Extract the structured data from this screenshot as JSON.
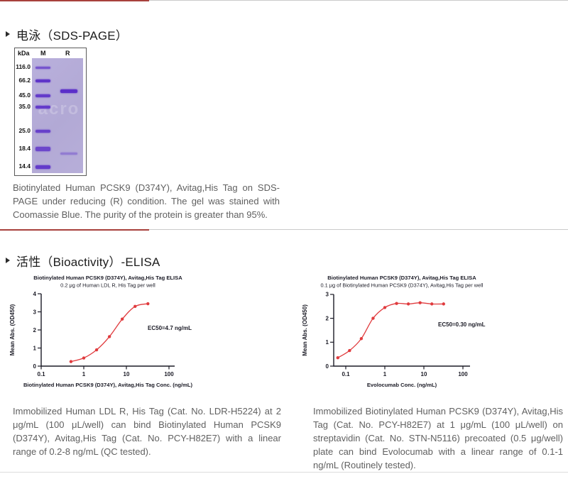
{
  "colors": {
    "accent_red": "#a8403c",
    "divider_gray": "#cbcbcb",
    "chart_ink": "#1b1b26",
    "curve_red": "#e03b3e",
    "gel_band_purple": "#5b2fc9",
    "gel_lane_bg": "#b4abd8",
    "caption_gray": "#606060"
  },
  "section_sds": {
    "title": "电泳（SDS-PAGE）",
    "gel": {
      "unit_label": "kDa",
      "lanes": [
        "M",
        "R"
      ],
      "markers": [
        "116.0",
        "66.2",
        "45.0",
        "35.0",
        "25.0",
        "18.4",
        "14.4"
      ],
      "watermark": "acro",
      "caption": "Biotinylated Human PCSK9 (D374Y), Avitag,His Tag on SDS-PAGE under reducing (R) condition. The gel was stained with Coomassie Blue. The purity of the protein is greater than 95%."
    }
  },
  "section_elisa": {
    "title": "活性（Bioactivity）-ELISA",
    "captions": [
      "Immobilized Human LDL R, His Tag (Cat. No. LDR-H5224) at 2 μg/mL (100 μL/well) can bind Biotinylated Human PCSK9 (D374Y), Avitag,His Tag (Cat. No. PCY-H82E7) with a linear range of 0.2-8 ng/mL (QC tested).",
      "Immobilized Biotinylated Human PCSK9 (D374Y), Avitag,His Tag (Cat. No. PCY-H82E7) at 1 μg/mL (100 μL/well) on streptavidin (Cat. No. STN-N5116) precoated (0.5 μg/well) plate can bind Evolocumab with a linear range of 0.1-1 ng/mL (Routinely tested)."
    ]
  },
  "chart_data": [
    {
      "type": "scatter",
      "title": "Biotinylated Human PCSK9 (D374Y), Avitag,His Tag ELISA",
      "subtitle": "0.2 μg of Human LDL R, His Tag per well",
      "xlabel": "Biotinylated Human PCSK9 (D374Y), Avitag,His Tag Conc. (ng/mL)",
      "ylabel": "Mean Abs. (OD450)",
      "xscale": "log",
      "xlim": [
        0.1,
        100
      ],
      "xticks": [
        0.1,
        1,
        10,
        100
      ],
      "ylim": [
        0,
        4
      ],
      "yticks": [
        0,
        1,
        2,
        3,
        4
      ],
      "x": [
        0.5,
        1,
        2,
        4,
        8,
        16,
        32
      ],
      "y": [
        0.25,
        0.45,
        0.9,
        1.63,
        2.6,
        3.3,
        3.45
      ],
      "annotation": "EC50=4.7 ng/mL",
      "color": "#e03b3e",
      "grid": false,
      "legend": null
    },
    {
      "type": "scatter",
      "title": "Biotinylated Human PCSK9 (D374Y), Avitag,His Tag ELISA",
      "subtitle": "0.1 μg of Biotinylated Human PCSK9 (D374Y), Avitag,His Tag per well",
      "xlabel": "Evolocumab Conc. (ng/mL)",
      "ylabel": "Mean Abs. (OD450)",
      "xscale": "log",
      "xlim": [
        0.06,
        100
      ],
      "xticks": [
        0.1,
        1,
        10,
        100
      ],
      "ylim": [
        0,
        3
      ],
      "yticks": [
        0,
        1,
        2,
        3
      ],
      "x": [
        0.0625,
        0.125,
        0.25,
        0.5,
        1,
        2,
        4,
        8,
        16,
        32
      ],
      "y": [
        0.35,
        0.65,
        1.15,
        2.0,
        2.45,
        2.62,
        2.6,
        2.65,
        2.6,
        2.6
      ],
      "annotation": "EC50=0.30 ng/mL",
      "color": "#e03b3e",
      "grid": false,
      "legend": null
    }
  ]
}
